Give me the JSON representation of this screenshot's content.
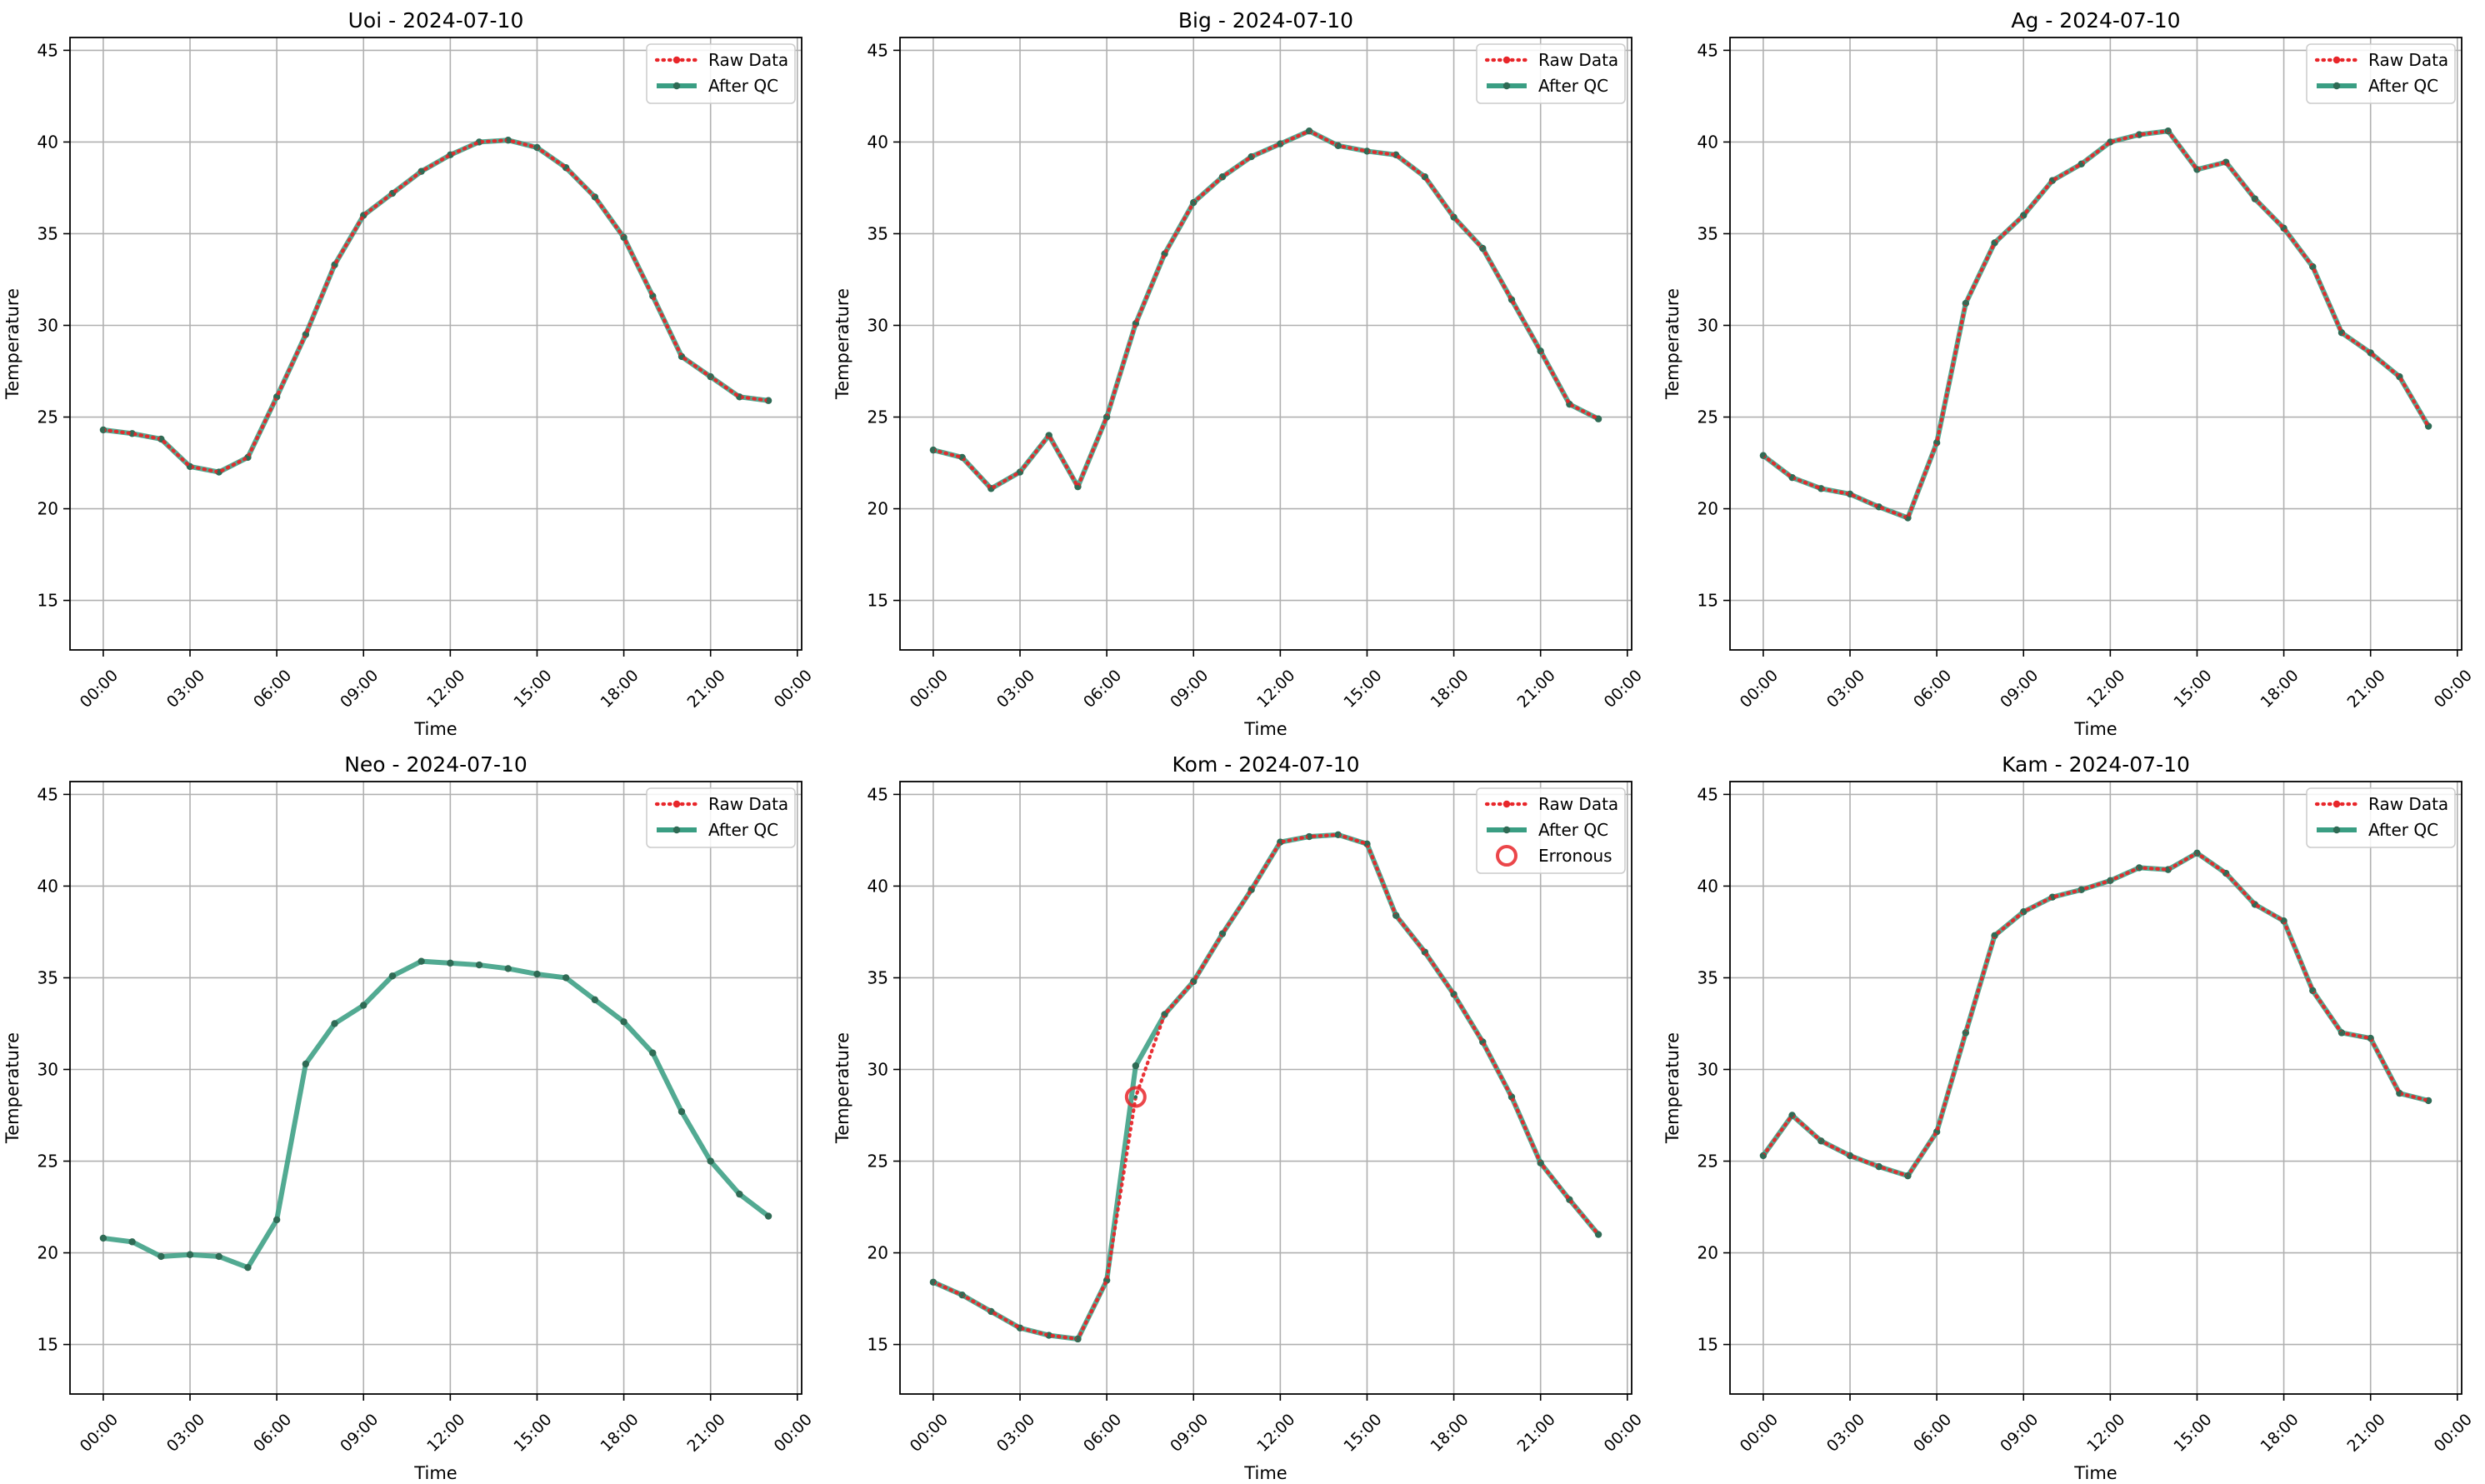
{
  "figure": {
    "common": {
      "xlabel": "Time",
      "ylabel": "Temperature",
      "ylim": [
        12.3,
        45.7
      ],
      "yticks": [
        15,
        20,
        25,
        30,
        35,
        40,
        45
      ],
      "xlim_hours": [
        -1.15,
        24.15
      ],
      "xticks_hours": [
        0,
        3,
        6,
        9,
        12,
        15,
        18,
        21,
        24
      ],
      "xtick_labels": [
        "00:00",
        "03:00",
        "06:00",
        "09:00",
        "12:00",
        "15:00",
        "18:00",
        "21:00",
        "00:00"
      ],
      "grid": true,
      "legend_position": "upper-right",
      "colors": {
        "raw": "#e8262a",
        "qc": "#3a9e83",
        "qc_marker": "#2f6b55",
        "erroneous": "#e8262a"
      }
    },
    "legend_labels": {
      "raw": "Raw Data",
      "qc": "After QC",
      "erroneous": "Erronous"
    }
  },
  "chart_data": [
    {
      "type": "line",
      "title": "Uoi - 2024-07-10",
      "x": [
        "00:00",
        "01:00",
        "02:00",
        "03:00",
        "04:00",
        "05:00",
        "06:00",
        "07:00",
        "08:00",
        "09:00",
        "10:00",
        "11:00",
        "12:00",
        "13:00",
        "14:00",
        "15:00",
        "16:00",
        "17:00",
        "18:00",
        "19:00",
        "20:00",
        "21:00",
        "22:00",
        "23:00"
      ],
      "series": [
        {
          "name": "Raw Data",
          "values": [
            24.3,
            24.1,
            23.8,
            22.3,
            22.0,
            22.8,
            26.1,
            29.5,
            33.3,
            36.0,
            37.2,
            38.4,
            39.3,
            40.0,
            40.1,
            39.7,
            38.6,
            37.0,
            34.8,
            31.6,
            28.3,
            27.2,
            26.1,
            25.9
          ]
        },
        {
          "name": "After QC",
          "values": [
            24.3,
            24.1,
            23.8,
            22.3,
            22.0,
            22.8,
            26.1,
            29.5,
            33.3,
            36.0,
            37.2,
            38.4,
            39.3,
            40.0,
            40.1,
            39.7,
            38.6,
            37.0,
            34.8,
            31.6,
            28.3,
            27.2,
            26.1,
            25.9
          ]
        }
      ]
    },
    {
      "type": "line",
      "title": "Big - 2024-07-10",
      "x": [
        "00:00",
        "01:00",
        "02:00",
        "03:00",
        "04:00",
        "05:00",
        "06:00",
        "07:00",
        "08:00",
        "09:00",
        "10:00",
        "11:00",
        "12:00",
        "13:00",
        "14:00",
        "15:00",
        "16:00",
        "17:00",
        "18:00",
        "19:00",
        "20:00",
        "21:00",
        "22:00",
        "23:00"
      ],
      "series": [
        {
          "name": "Raw Data",
          "values": [
            23.2,
            22.8,
            21.1,
            22.0,
            24.0,
            21.2,
            25.0,
            30.1,
            33.9,
            36.7,
            38.1,
            39.2,
            39.9,
            40.6,
            39.8,
            39.5,
            39.3,
            38.1,
            35.9,
            34.2,
            31.4,
            28.6,
            25.7,
            24.9
          ]
        },
        {
          "name": "After QC",
          "values": [
            23.2,
            22.8,
            21.1,
            22.0,
            24.0,
            21.2,
            25.0,
            30.1,
            33.9,
            36.7,
            38.1,
            39.2,
            39.9,
            40.6,
            39.8,
            39.5,
            39.3,
            38.1,
            35.9,
            34.2,
            31.4,
            28.6,
            25.7,
            24.9
          ]
        }
      ]
    },
    {
      "type": "line",
      "title": "Ag - 2024-07-10",
      "x": [
        "00:00",
        "01:00",
        "02:00",
        "03:00",
        "04:00",
        "05:00",
        "06:00",
        "07:00",
        "08:00",
        "09:00",
        "10:00",
        "11:00",
        "12:00",
        "13:00",
        "14:00",
        "15:00",
        "16:00",
        "17:00",
        "18:00",
        "19:00",
        "20:00",
        "21:00",
        "22:00",
        "23:00"
      ],
      "series": [
        {
          "name": "Raw Data",
          "values": [
            22.9,
            21.7,
            21.1,
            20.8,
            20.1,
            19.5,
            23.6,
            31.2,
            34.5,
            36.0,
            37.9,
            38.8,
            40.0,
            40.4,
            40.6,
            38.5,
            38.9,
            36.9,
            35.3,
            33.2,
            29.6,
            28.5,
            27.2,
            24.5
          ]
        },
        {
          "name": "After QC",
          "values": [
            22.9,
            21.7,
            21.1,
            20.8,
            20.1,
            19.5,
            23.6,
            31.2,
            34.5,
            36.0,
            37.9,
            38.8,
            40.0,
            40.4,
            40.6,
            38.5,
            38.9,
            36.9,
            35.3,
            33.2,
            29.6,
            28.5,
            27.2,
            24.5
          ]
        }
      ]
    },
    {
      "type": "line",
      "title": "Neo - 2024-07-10",
      "x": [
        "00:00",
        "01:00",
        "02:00",
        "03:00",
        "04:00",
        "05:00",
        "06:00",
        "07:00",
        "08:00",
        "09:00",
        "10:00",
        "11:00",
        "12:00",
        "13:00",
        "14:00",
        "15:00",
        "16:00",
        "17:00",
        "18:00",
        "19:00",
        "20:00",
        "21:00",
        "22:00",
        "23:00"
      ],
      "series": [
        {
          "name": "Raw Data",
          "values": [
            20.8,
            20.6,
            19.8,
            19.9,
            19.8,
            19.2,
            21.8,
            30.3,
            32.5,
            33.5,
            35.1,
            35.9,
            35.8,
            35.7,
            35.5,
            35.2,
            35.0,
            33.8,
            32.6,
            30.9,
            27.7,
            25.0,
            23.2,
            22.0
          ],
          "visible": false
        },
        {
          "name": "After QC",
          "values": [
            20.8,
            20.6,
            19.8,
            19.9,
            19.8,
            19.2,
            21.8,
            30.3,
            32.5,
            33.5,
            35.1,
            35.9,
            35.8,
            35.7,
            35.5,
            35.2,
            35.0,
            33.8,
            32.6,
            30.9,
            27.7,
            25.0,
            23.2,
            22.0
          ]
        }
      ]
    },
    {
      "type": "line",
      "title": "Kom - 2024-07-10",
      "x": [
        "00:00",
        "01:00",
        "02:00",
        "03:00",
        "04:00",
        "05:00",
        "06:00",
        "07:00",
        "08:00",
        "09:00",
        "10:00",
        "11:00",
        "12:00",
        "13:00",
        "14:00",
        "15:00",
        "16:00",
        "17:00",
        "18:00",
        "19:00",
        "20:00",
        "21:00",
        "22:00",
        "23:00"
      ],
      "series": [
        {
          "name": "Raw Data",
          "values": [
            18.4,
            17.7,
            16.8,
            15.9,
            15.5,
            15.3,
            18.5,
            28.5,
            33.0,
            34.8,
            37.4,
            39.8,
            42.4,
            42.7,
            42.8,
            42.3,
            38.4,
            36.4,
            34.1,
            31.5,
            28.5,
            24.9,
            22.9,
            21.0
          ]
        },
        {
          "name": "After QC",
          "values": [
            18.4,
            17.7,
            16.8,
            15.9,
            15.5,
            15.3,
            18.5,
            30.2,
            33.0,
            34.8,
            37.4,
            39.8,
            42.4,
            42.7,
            42.8,
            42.3,
            38.4,
            36.4,
            34.1,
            31.5,
            28.5,
            24.9,
            22.9,
            21.0
          ]
        }
      ],
      "erroneous": [
        {
          "x": "07:00",
          "value": 28.5
        }
      ]
    },
    {
      "type": "line",
      "title": "Kam - 2024-07-10",
      "x": [
        "00:00",
        "01:00",
        "02:00",
        "03:00",
        "04:00",
        "05:00",
        "06:00",
        "07:00",
        "08:00",
        "09:00",
        "10:00",
        "11:00",
        "12:00",
        "13:00",
        "14:00",
        "15:00",
        "16:00",
        "17:00",
        "18:00",
        "19:00",
        "20:00",
        "21:00",
        "22:00",
        "23:00"
      ],
      "series": [
        {
          "name": "Raw Data",
          "values": [
            25.3,
            27.5,
            26.1,
            25.3,
            24.7,
            24.2,
            26.6,
            32.0,
            37.3,
            38.6,
            39.4,
            39.8,
            40.3,
            41.0,
            40.9,
            41.8,
            40.7,
            39.0,
            38.1,
            34.3,
            32.0,
            31.7,
            28.7,
            28.3
          ]
        },
        {
          "name": "After QC",
          "values": [
            25.3,
            27.5,
            26.1,
            25.3,
            24.7,
            24.2,
            26.6,
            32.0,
            37.3,
            38.6,
            39.4,
            39.8,
            40.3,
            41.0,
            40.9,
            41.8,
            40.7,
            39.0,
            38.1,
            34.3,
            32.0,
            31.7,
            28.7,
            28.3
          ]
        }
      ]
    }
  ]
}
